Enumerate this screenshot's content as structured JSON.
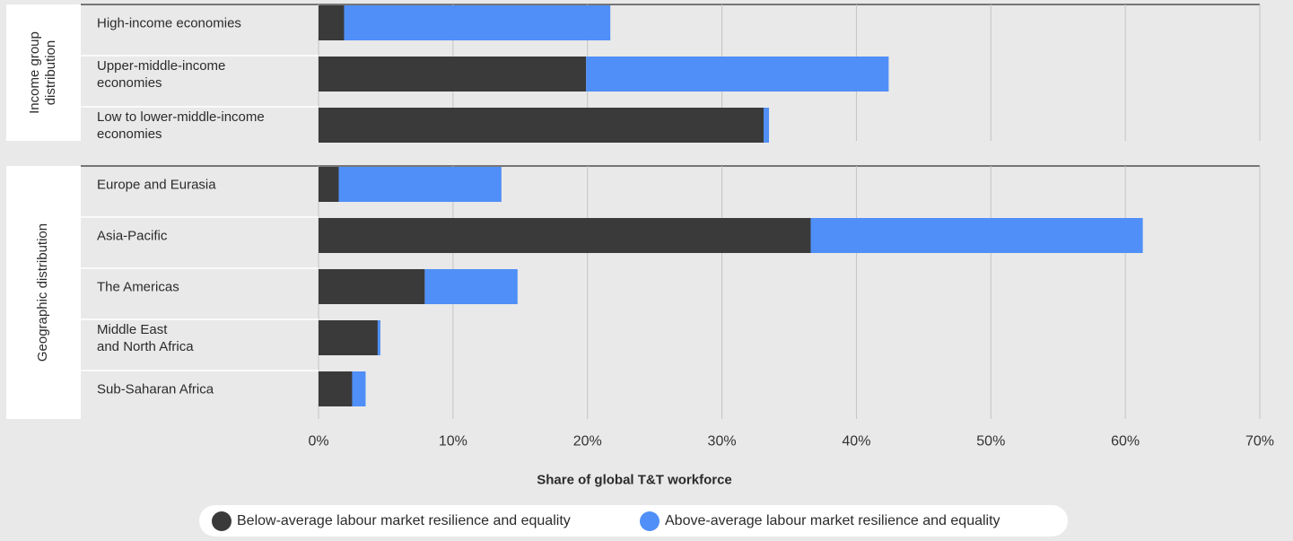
{
  "chart_data": {
    "type": "bar",
    "orientation": "horizontal",
    "stacked": true,
    "groups": [
      {
        "label": "Income group\ndistribution",
        "categories": [
          "High-income economies",
          "Upper-middle-income\neconomies",
          "Low to lower-middle-income\neconomies"
        ]
      },
      {
        "label": "Geographic distribution",
        "categories": [
          "Europe and Eurasia",
          "Asia-Pacific",
          "The Americas",
          "Middle East\nand North Africa",
          "Sub-Saharan Africa"
        ]
      }
    ],
    "series": [
      {
        "name": "Below-average labour market resilience and equality",
        "color": "#3a3a3a",
        "values": [
          1.9,
          19.9,
          33.1,
          1.5,
          36.6,
          7.9,
          4.4,
          2.5
        ]
      },
      {
        "name": "Above-average labour market resilience and equality",
        "color": "#4f8ff7",
        "values": [
          19.8,
          22.5,
          0.4,
          12.1,
          24.7,
          6.9,
          0.2,
          1.0
        ]
      }
    ],
    "xlim": [
      0,
      70
    ],
    "xticks": [
      {
        "value": 0,
        "label": "0%"
      },
      {
        "value": 10,
        "label": "10%"
      },
      {
        "value": 20,
        "label": "20%"
      },
      {
        "value": 30,
        "label": "30%"
      },
      {
        "value": 40,
        "label": "40%"
      },
      {
        "value": 50,
        "label": "50%"
      },
      {
        "value": 60,
        "label": "60%"
      },
      {
        "value": 70,
        "label": "70%"
      }
    ],
    "grid": true,
    "xlabel": "Share of global T&T workforce",
    "legend": "bottom"
  }
}
